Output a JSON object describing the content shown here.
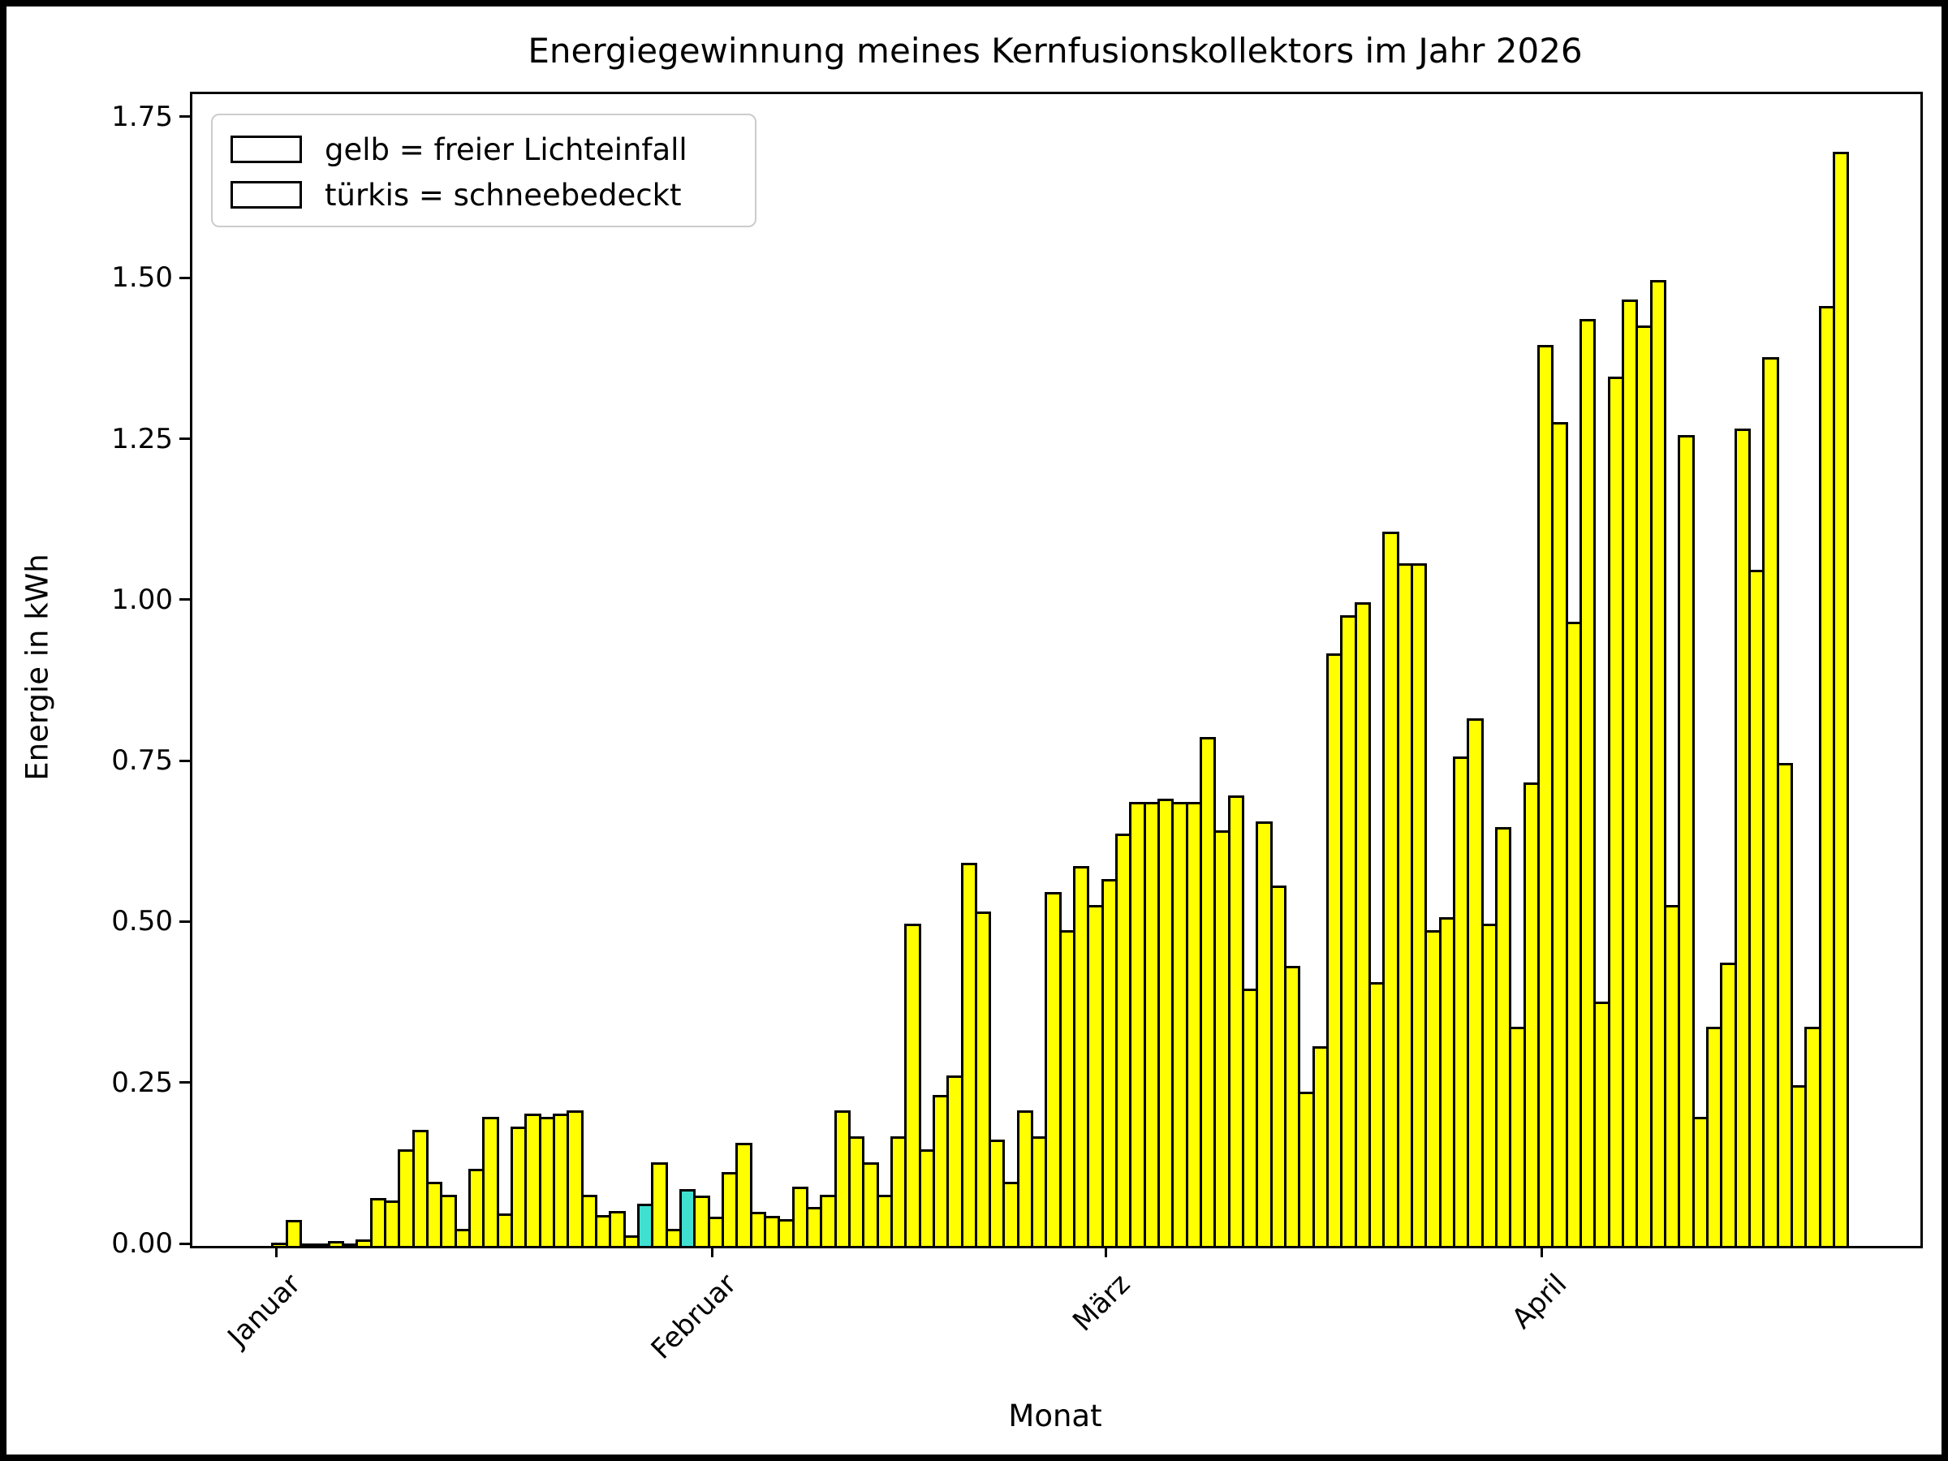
{
  "chart_data": {
    "type": "bar",
    "title": "Energiegewinnung meines Kernfusionskollektors im Jahr 2026",
    "xlabel": "Monat",
    "ylabel": "Energie in kWh",
    "ylim": [
      0,
      1.789
    ],
    "yticks": [
      {
        "label": "0.00",
        "value": 0.0
      },
      {
        "label": "0.25",
        "value": 0.25
      },
      {
        "label": "0.50",
        "value": 0.5
      },
      {
        "label": "0.75",
        "value": 0.75
      },
      {
        "label": "1.00",
        "value": 1.0
      },
      {
        "label": "1.25",
        "value": 1.25
      },
      {
        "label": "1.50",
        "value": 1.5
      },
      {
        "label": "1.75",
        "value": 1.75
      }
    ],
    "xticks": [
      {
        "label": "Januar",
        "day": 1
      },
      {
        "label": "Februar",
        "day": 32
      },
      {
        "label": "März",
        "day": 60
      },
      {
        "label": "April",
        "day": 91
      }
    ],
    "legend": [
      {
        "label": "gelb = freier Lichteinfall",
        "color": "#ffff00"
      },
      {
        "label": "türkis = schneebedeckt",
        "color": "#40e0d0"
      }
    ],
    "bar_colors": {
      "free": "#ffff00",
      "snow": "#40e0d0"
    },
    "edge_color": "#000000",
    "start_date_label": "Januar",
    "days_shown": 112,
    "snow_days": [
      27,
      30
    ],
    "values": [
      0.005,
      0.04,
      0.002,
      0.001,
      0.008,
      0.004,
      0.01,
      0.075,
      0.07,
      0.15,
      0.18,
      0.1,
      0.08,
      0.027,
      0.12,
      0.2,
      0.05,
      0.185,
      0.205,
      0.2,
      0.205,
      0.21,
      0.08,
      0.048,
      0.054,
      0.017,
      0.065,
      0.13,
      0.026,
      0.088,
      0.078,
      0.046,
      0.115,
      0.16,
      0.053,
      0.047,
      0.041,
      0.092,
      0.06,
      0.08,
      0.21,
      0.17,
      0.13,
      0.08,
      0.17,
      0.5,
      0.15,
      0.235,
      0.265,
      0.595,
      0.52,
      0.165,
      0.1,
      0.21,
      0.17,
      0.55,
      0.49,
      0.59,
      0.53,
      0.57,
      0.64,
      0.69,
      0.69,
      0.695,
      0.69,
      0.69,
      0.79,
      0.645,
      0.7,
      0.4,
      0.66,
      0.56,
      0.435,
      0.24,
      0.31,
      0.92,
      0.98,
      1.0,
      0.41,
      1.11,
      1.06,
      1.06,
      0.49,
      0.51,
      0.76,
      0.82,
      0.5,
      0.65,
      0.34,
      0.72,
      1.4,
      1.28,
      0.97,
      1.44,
      0.38,
      1.35,
      1.47,
      1.43,
      1.5,
      0.53,
      1.26,
      0.2,
      0.34,
      0.44,
      1.27,
      1.05,
      1.38,
      0.75,
      0.25,
      0.34,
      1.46,
      1.7
    ]
  }
}
